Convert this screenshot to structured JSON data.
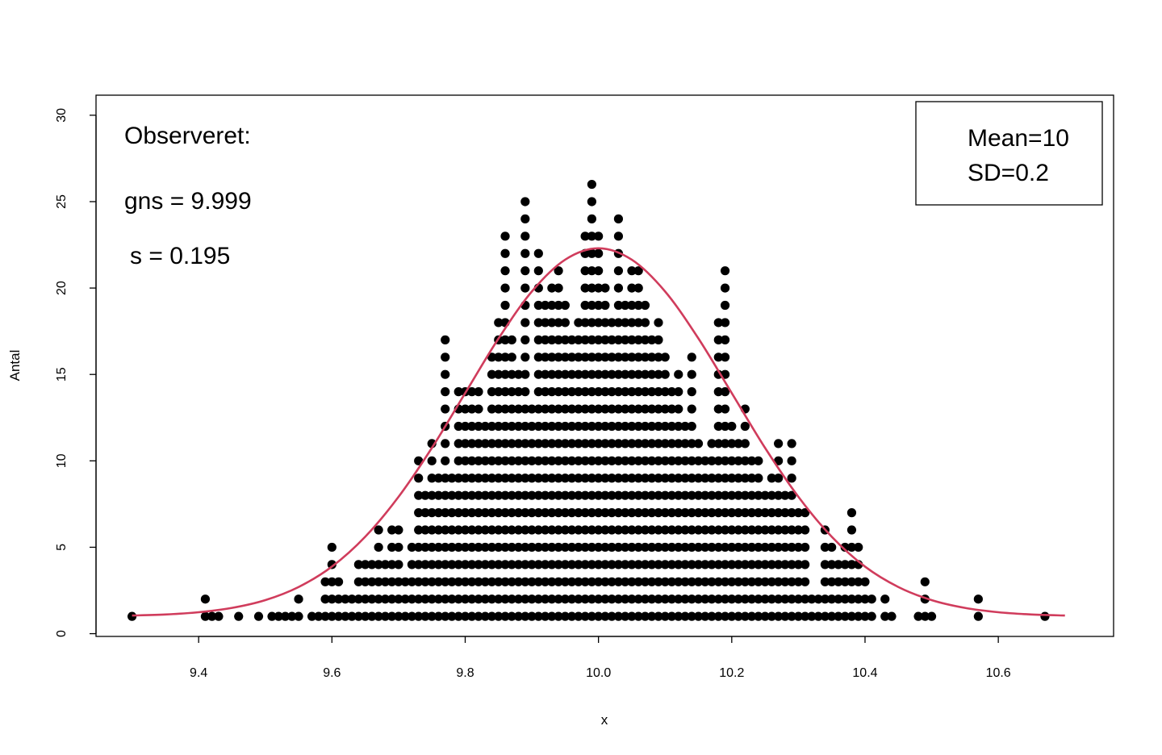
{
  "chart_data": {
    "type": "dotplot",
    "xlabel": "x",
    "ylabel": "Antal",
    "annotations": [
      "Observeret:",
      "gns = 9.999",
      "s = 0.195"
    ],
    "legend": [
      "Mean=10",
      "SD=0.2"
    ],
    "x": [
      9.3,
      9.41,
      9.42,
      9.43,
      9.46,
      9.49,
      9.51,
      9.52,
      9.53,
      9.54,
      9.55,
      9.57,
      9.58,
      9.59,
      9.6,
      9.61,
      9.62,
      9.63,
      9.64,
      9.65,
      9.66,
      9.67,
      9.68,
      9.69,
      9.7,
      9.71,
      9.72,
      9.73,
      9.74,
      9.75,
      9.76,
      9.77,
      9.78,
      9.79,
      9.8,
      9.81,
      9.82,
      9.83,
      9.84,
      9.85,
      9.86,
      9.87,
      9.88,
      9.89,
      9.9,
      9.91,
      9.92,
      9.93,
      9.94,
      9.95,
      9.96,
      9.97,
      9.98,
      9.99,
      10.0,
      10.01,
      10.02,
      10.03,
      10.04,
      10.05,
      10.06,
      10.07,
      10.08,
      10.09,
      10.1,
      10.11,
      10.12,
      10.13,
      10.14,
      10.15,
      10.16,
      10.17,
      10.18,
      10.19,
      10.2,
      10.21,
      10.22,
      10.23,
      10.24,
      10.25,
      10.26,
      10.27,
      10.28,
      10.29,
      10.3,
      10.31,
      10.32,
      10.33,
      10.34,
      10.35,
      10.36,
      10.37,
      10.38,
      10.39,
      10.4,
      10.41,
      10.43,
      10.44,
      10.48,
      10.49,
      10.5,
      10.57,
      10.67
    ],
    "values": [
      1,
      2,
      1,
      1,
      1,
      1,
      1,
      1,
      1,
      1,
      2,
      1,
      1,
      3,
      5,
      3,
      2,
      2,
      4,
      4,
      4,
      6,
      4,
      6,
      6,
      3,
      5,
      10,
      8,
      11,
      9,
      17,
      9,
      14,
      14,
      14,
      14,
      12,
      16,
      18,
      23,
      17,
      15,
      25,
      13,
      22,
      19,
      20,
      21,
      19,
      17,
      18,
      23,
      26,
      23,
      20,
      18,
      24,
      19,
      21,
      21,
      19,
      17,
      18,
      16,
      14,
      15,
      12,
      16,
      11,
      10,
      11,
      18,
      21,
      12,
      11,
      13,
      10,
      10,
      8,
      9,
      11,
      8,
      11,
      7,
      7,
      2,
      2,
      6,
      5,
      4,
      5,
      7,
      5,
      3,
      2,
      2,
      1,
      1,
      3,
      1,
      2,
      1
    ],
    "color": "#000000",
    "curve": {
      "color": "#d03c5c",
      "x": [
        9.3,
        9.35,
        9.4,
        9.45,
        9.5,
        9.55,
        9.6,
        9.65,
        9.7,
        9.75,
        9.8,
        9.85,
        9.9,
        9.95,
        10.0,
        10.05,
        10.1,
        10.15,
        10.2,
        10.25,
        10.3,
        10.35,
        10.4,
        10.45,
        10.5,
        10.55,
        10.6,
        10.65,
        10.7
      ],
      "values": [
        1.05,
        1.11,
        1.24,
        1.49,
        1.94,
        2.7,
        3.88,
        5.61,
        7.92,
        10.75,
        13.92,
        17.08,
        19.8,
        21.64,
        22.3,
        21.64,
        19.8,
        17.08,
        13.92,
        10.75,
        7.92,
        5.61,
        3.88,
        2.7,
        1.94,
        1.49,
        1.24,
        1.11,
        1.05
      ]
    },
    "xlim": [
      9.246,
      10.773
    ],
    "ylim": [
      -0.16,
      31.16
    ],
    "xticks": [
      9.4,
      9.6,
      9.8,
      {
        "value": 10.0,
        "label": "10.0"
      },
      10.2,
      10.4,
      10.6
    ],
    "yticks": [
      0,
      5,
      10,
      15,
      20,
      25,
      30
    ]
  }
}
